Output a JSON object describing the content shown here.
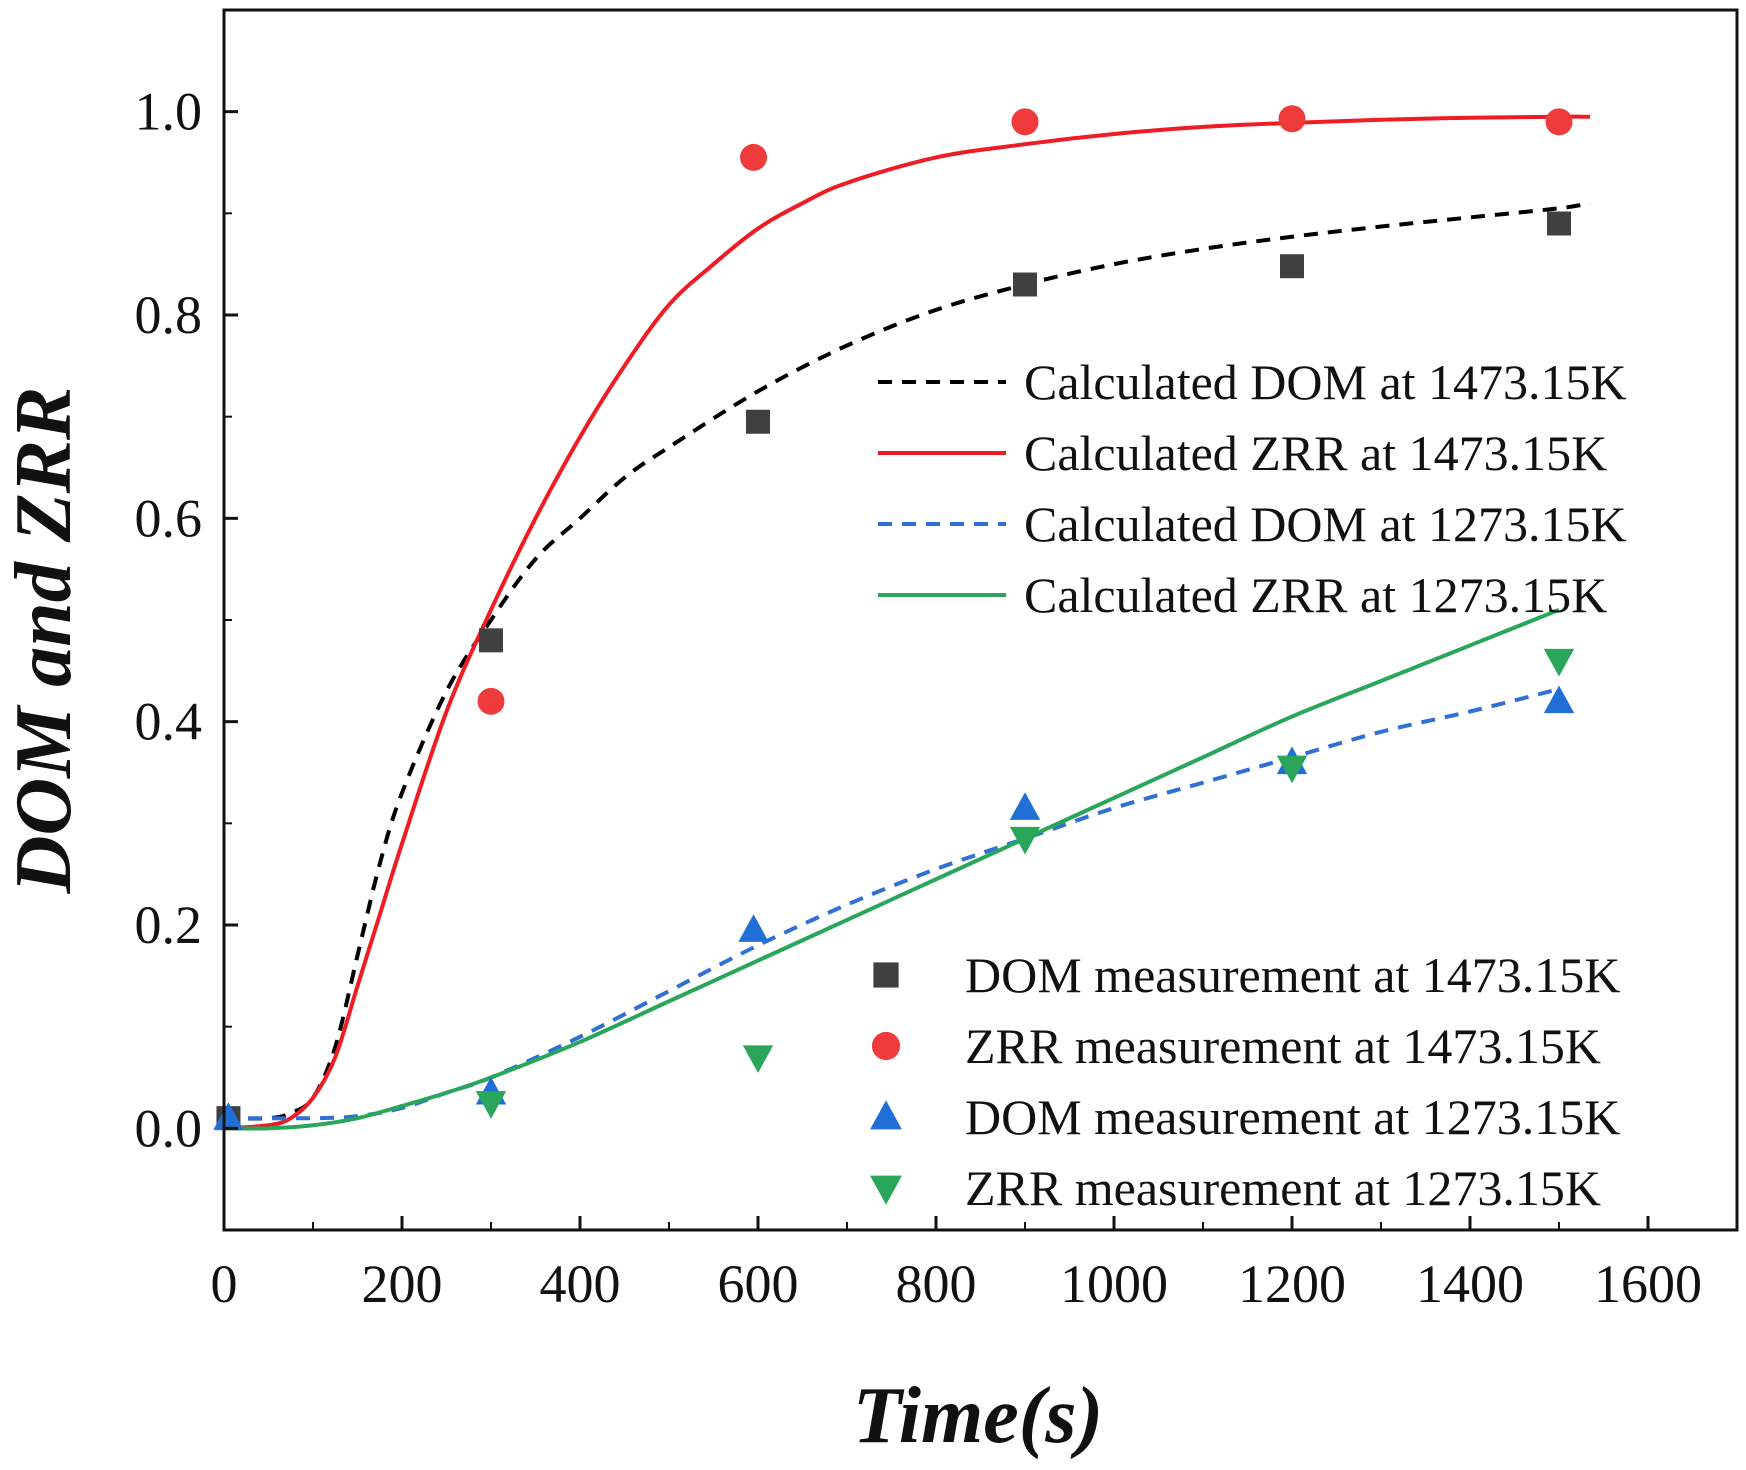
{
  "chart_data": {
    "type": "line",
    "title": "",
    "xlabel": "Time(s)",
    "ylabel": "DOM and ZRR",
    "xlim": [
      0,
      1700
    ],
    "ylim": [
      -0.1,
      1.1
    ],
    "x_ticks": [
      0,
      200,
      400,
      600,
      800,
      1000,
      1200,
      1400,
      1600
    ],
    "x_tick_labels": [
      "0",
      "200",
      "400",
      "600",
      "800",
      "1000",
      "1200",
      "1400",
      "1600"
    ],
    "y_ticks": [
      0.0,
      0.2,
      0.4,
      0.6,
      0.8,
      1.0
    ],
    "y_tick_labels": [
      "0.0",
      "0.2",
      "0.4",
      "0.6",
      "0.8",
      "1.0"
    ],
    "grid": false,
    "lines": [
      {
        "name": "Calculated DOM at 1473.15K",
        "color": "#000000",
        "dash": "dashed",
        "x": [
          0,
          50,
          75,
          100,
          125,
          150,
          175,
          200,
          250,
          300,
          350,
          400,
          450,
          500,
          600,
          700,
          800,
          900,
          1000,
          1100,
          1200,
          1300,
          1400,
          1500,
          1535
        ],
        "y": [
          0.01,
          0.01,
          0.015,
          0.03,
          0.08,
          0.17,
          0.26,
          0.33,
          0.43,
          0.5,
          0.56,
          0.6,
          0.64,
          0.67,
          0.725,
          0.77,
          0.805,
          0.83,
          0.85,
          0.865,
          0.877,
          0.887,
          0.896,
          0.905,
          0.91
        ]
      },
      {
        "name": "Calculated ZRR at 1473.15K",
        "color": "#ef1c24",
        "dash": "solid",
        "x": [
          0,
          50,
          75,
          100,
          125,
          150,
          175,
          200,
          250,
          300,
          350,
          400,
          450,
          500,
          550,
          600,
          650,
          700,
          800,
          900,
          1000,
          1100,
          1200,
          1300,
          1400,
          1500,
          1535
        ],
        "y": [
          0.0,
          0.003,
          0.01,
          0.03,
          0.07,
          0.14,
          0.21,
          0.28,
          0.41,
          0.51,
          0.6,
          0.68,
          0.75,
          0.81,
          0.85,
          0.885,
          0.91,
          0.93,
          0.955,
          0.968,
          0.978,
          0.985,
          0.989,
          0.992,
          0.994,
          0.995,
          0.995
        ]
      },
      {
        "name": "Calculated DOM at 1273.15K",
        "color": "#2f6fd6",
        "dash": "dashed",
        "x": [
          0,
          100,
          150,
          200,
          250,
          300,
          400,
          500,
          600,
          700,
          800,
          900,
          1000,
          1100,
          1200,
          1300,
          1400,
          1500
        ],
        "y": [
          0.01,
          0.01,
          0.012,
          0.02,
          0.035,
          0.05,
          0.09,
          0.135,
          0.18,
          0.22,
          0.255,
          0.285,
          0.315,
          0.34,
          0.365,
          0.39,
          0.41,
          0.432
        ]
      },
      {
        "name": "Calculated ZRR at 1273.15K",
        "color": "#2aa65a",
        "dash": "solid",
        "x": [
          0,
          50,
          100,
          150,
          200,
          250,
          300,
          400,
          500,
          600,
          700,
          800,
          900,
          1000,
          1100,
          1200,
          1300,
          1400,
          1500
        ],
        "y": [
          0.0,
          0.0,
          0.003,
          0.01,
          0.022,
          0.035,
          0.05,
          0.085,
          0.125,
          0.165,
          0.205,
          0.245,
          0.285,
          0.325,
          0.365,
          0.405,
          0.44,
          0.475,
          0.51
        ]
      }
    ],
    "markers": [
      {
        "name": "DOM measurement at 1473.15K",
        "color": "#404040",
        "marker": "square",
        "x": [
          5,
          300,
          600,
          900,
          1200,
          1500
        ],
        "y": [
          0.01,
          0.48,
          0.695,
          0.83,
          0.848,
          0.89
        ]
      },
      {
        "name": "ZRR measurement at 1473.15K",
        "color": "#ef3b3b",
        "marker": "circle",
        "x": [
          300,
          595,
          900,
          1200,
          1500
        ],
        "y": [
          0.42,
          0.955,
          0.99,
          0.993,
          0.99
        ]
      },
      {
        "name": "DOM measurement at 1273.15K",
        "color": "#1f6fd6",
        "marker": "triangle-up",
        "x": [
          5,
          300,
          595,
          900,
          1200,
          1500
        ],
        "y": [
          0.01,
          0.035,
          0.195,
          0.315,
          0.36,
          0.42
        ]
      },
      {
        "name": "ZRR measurement at 1273.15K",
        "color": "#2aa65a",
        "marker": "triangle-down",
        "x": [
          300,
          600,
          900,
          1200,
          1500
        ],
        "y": [
          0.025,
          0.07,
          0.285,
          0.355,
          0.46
        ]
      }
    ],
    "legends": [
      {
        "placement": "upper-right",
        "entries": [
          "Calculated DOM at 1473.15K",
          "Calculated ZRR at 1473.15K",
          "Calculated DOM at 1273.15K",
          "Calculated ZRR at 1273.15K"
        ]
      },
      {
        "placement": "lower-right",
        "entries": [
          "DOM measurement at 1473.15K",
          "ZRR measurement at 1473.15K",
          "DOM measurement at 1273.15K",
          "ZRR measurement at 1273.15K"
        ]
      }
    ]
  }
}
